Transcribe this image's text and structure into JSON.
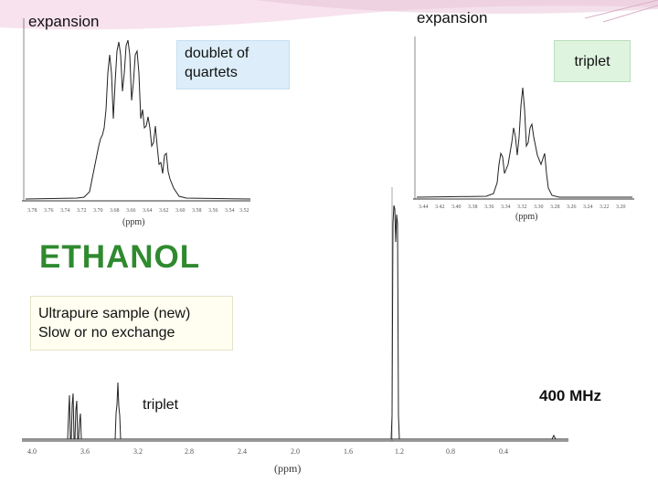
{
  "labels": {
    "expansion_left": "expansion",
    "expansion_right": "expansion",
    "doublet_of_quartets": "doublet of\nquartets",
    "triplet_right": "triplet",
    "title": "ETHANOL",
    "sample_note": "Ultrapure sample (new)\nSlow or no exchange",
    "triplet_bottom": "triplet",
    "frequency": "400 MHz"
  },
  "spectra": {
    "left_expansion": {
      "axis_label": "(ppm)",
      "ticks": [
        "3.78",
        "3.76",
        "3.74",
        "3.72",
        "3.70",
        "3.68",
        "3.66",
        "3.64",
        "3.62",
        "3.60",
        "3.58",
        "3.56",
        "3.54",
        "3.52"
      ]
    },
    "right_expansion": {
      "axis_label": "(ppm)",
      "ticks": [
        "3.44",
        "3.42",
        "3.40",
        "3.38",
        "3.36",
        "3.34",
        "3.32",
        "3.30",
        "3.28",
        "3.26",
        "3.24",
        "3.22",
        "3.20"
      ]
    },
    "full": {
      "axis_label": "(ppm)",
      "ticks": [
        "4.0",
        "3.6",
        "3.2",
        "2.8",
        "2.4",
        "2.0",
        "1.6",
        "1.2",
        "0.8",
        "0.4"
      ]
    }
  },
  "colors": {
    "title": "#2f8a2f",
    "box_blue": "#ddeefa",
    "box_green": "#dff4df",
    "box_cream": "#fffef0"
  }
}
